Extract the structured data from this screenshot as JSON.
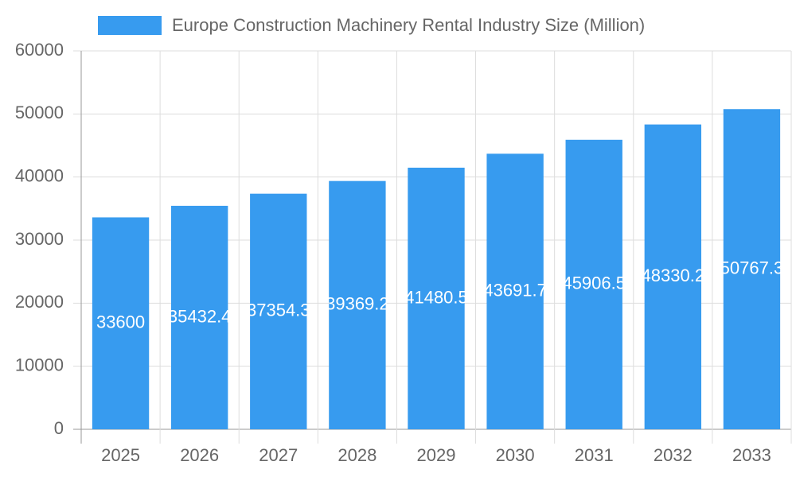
{
  "chart_data": {
    "type": "bar",
    "categories": [
      "2025",
      "2026",
      "2027",
      "2028",
      "2029",
      "2030",
      "2031",
      "2032",
      "2033"
    ],
    "series": [
      {
        "name": "Europe Construction Machinery Rental Industry Size (Million)",
        "color": "#379bef",
        "values": [
          33600,
          35432.4,
          37354.3,
          39369.2,
          41480.5,
          43691.7,
          45906.5,
          48330.2,
          50767.3
        ]
      }
    ],
    "ylim": [
      0,
      60000
    ],
    "yticks": [
      0,
      10000,
      20000,
      30000,
      40000,
      50000,
      60000
    ],
    "grid": true,
    "legend": "top"
  }
}
